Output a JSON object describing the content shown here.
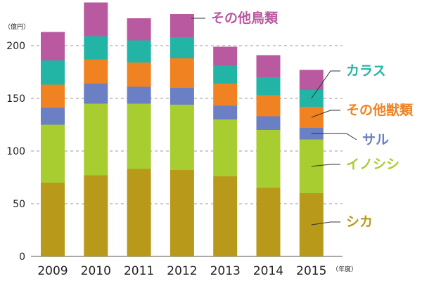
{
  "chart_data": {
    "type": "bar",
    "stacked": true,
    "categories": [
      "2009",
      "2010",
      "2011",
      "2012",
      "2013",
      "2014",
      "2015"
    ],
    "series": [
      {
        "name": "シカ",
        "color": "#b8991a",
        "values": [
          70,
          77,
          83,
          82,
          76,
          65,
          60
        ]
      },
      {
        "name": "イノシシ",
        "color": "#a8cd30",
        "values": [
          55,
          68,
          62,
          62,
          54,
          55,
          51
        ]
      },
      {
        "name": "サル",
        "color": "#6a7fc4",
        "values": [
          16,
          19,
          16,
          16,
          13,
          13,
          11
        ]
      },
      {
        "name": "その他獣類",
        "color": "#f08221",
        "values": [
          22,
          23,
          23,
          28,
          21,
          20,
          20
        ]
      },
      {
        "name": "カラス",
        "color": "#22b5a5",
        "values": [
          23,
          22,
          21,
          20,
          17,
          17,
          16
        ]
      },
      {
        "name": "その他鳥類",
        "color": "#b95aa0",
        "values": [
          27,
          32,
          21,
          22,
          18,
          21,
          19
        ]
      }
    ],
    "ylim": [
      0,
      230
    ],
    "yticks": [
      "0",
      "50",
      "100",
      "150",
      "200"
    ],
    "ylabel": "（億円）",
    "xlabel": "（年度）",
    "grid": true,
    "legend": "right, labels with leader lines"
  }
}
